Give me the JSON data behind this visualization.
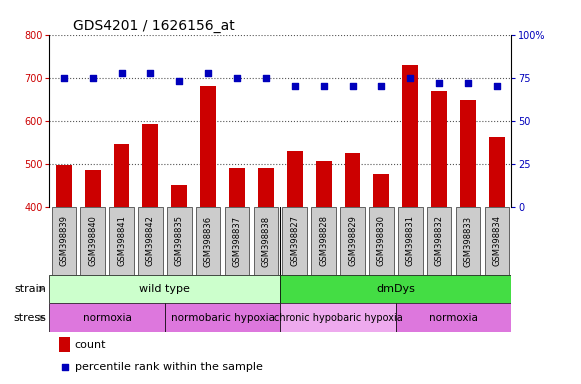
{
  "title": "GDS4201 / 1626156_at",
  "samples": [
    "GSM398839",
    "GSM398840",
    "GSM398841",
    "GSM398842",
    "GSM398835",
    "GSM398836",
    "GSM398837",
    "GSM398838",
    "GSM398827",
    "GSM398828",
    "GSM398829",
    "GSM398830",
    "GSM398831",
    "GSM398832",
    "GSM398833",
    "GSM398834"
  ],
  "counts": [
    497,
    486,
    547,
    592,
    452,
    682,
    491,
    492,
    530,
    507,
    525,
    477,
    730,
    670,
    649,
    563
  ],
  "percentile": [
    75,
    75,
    78,
    78,
    73,
    78,
    75,
    75,
    70,
    70,
    70,
    70,
    75,
    72,
    72,
    70
  ],
  "ylim_left": [
    400,
    800
  ],
  "ylim_right": [
    0,
    100
  ],
  "yticks_left": [
    400,
    500,
    600,
    700,
    800
  ],
  "yticks_right": [
    0,
    25,
    50,
    75,
    100
  ],
  "bar_color": "#cc0000",
  "dot_color": "#0000bb",
  "bar_bottom": 400,
  "strain_groups": [
    {
      "label": "wild type",
      "start": 0,
      "end": 8,
      "color": "#ccffcc"
    },
    {
      "label": "dmDys",
      "start": 8,
      "end": 16,
      "color": "#44dd44"
    }
  ],
  "stress_groups": [
    {
      "label": "normoxia",
      "start": 0,
      "end": 4,
      "color": "#dd77dd"
    },
    {
      "label": "normobaric hypoxia",
      "start": 4,
      "end": 8,
      "color": "#dd77dd"
    },
    {
      "label": "chronic hypobaric hypoxia",
      "start": 8,
      "end": 12,
      "color": "#eeaaee"
    },
    {
      "label": "normoxia",
      "start": 12,
      "end": 16,
      "color": "#dd77dd"
    }
  ],
  "stress_dividers": [
    4,
    8,
    12
  ],
  "grid_color": "#555555",
  "bg_color": "#ffffff",
  "tick_bg_color": "#cccccc",
  "tick_label_color_left": "#cc0000",
  "tick_label_color_right": "#0000bb",
  "label_fontsize": 8,
  "title_fontsize": 10,
  "tick_fontsize": 7
}
